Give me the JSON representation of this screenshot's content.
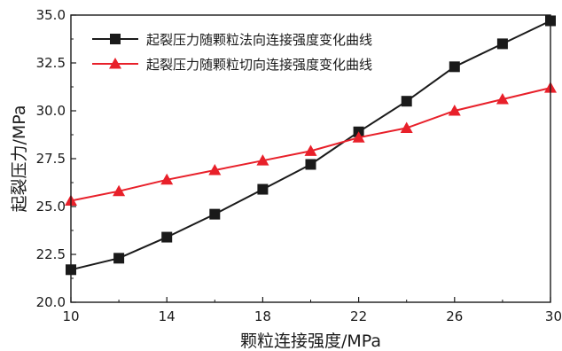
{
  "chart_data": {
    "type": "line",
    "xlabel": "颗粒连接强度/MPa",
    "ylabel": "起裂压力/MPa",
    "xlim": [
      10,
      30
    ],
    "ylim": [
      20,
      35
    ],
    "x_ticks": [
      10,
      14,
      18,
      22,
      26,
      30
    ],
    "y_ticks": [
      "20.0",
      "22.5",
      "25.0",
      "27.5",
      "30.0",
      "32.5",
      "35.0"
    ],
    "grid": false,
    "legend_position": "top-left",
    "series": [
      {
        "name": "起裂压力随颗粒法向连接强度变化曲线",
        "color": "#1a1a1a",
        "marker": "square",
        "x": [
          10,
          12,
          14,
          16,
          18,
          20,
          22,
          24,
          26,
          28,
          30
        ],
        "y": [
          21.7,
          22.3,
          23.4,
          24.6,
          25.9,
          27.2,
          28.9,
          30.5,
          32.3,
          33.5,
          34.7
        ]
      },
      {
        "name": "起裂压力随颗粒切向连接强度变化曲线",
        "color": "#e8202a",
        "marker": "triangle",
        "x": [
          10,
          12,
          14,
          16,
          18,
          20,
          22,
          24,
          26,
          28,
          30
        ],
        "y": [
          25.3,
          25.8,
          26.4,
          26.9,
          27.4,
          27.9,
          28.6,
          29.1,
          30.0,
          30.6,
          31.2
        ]
      }
    ]
  }
}
